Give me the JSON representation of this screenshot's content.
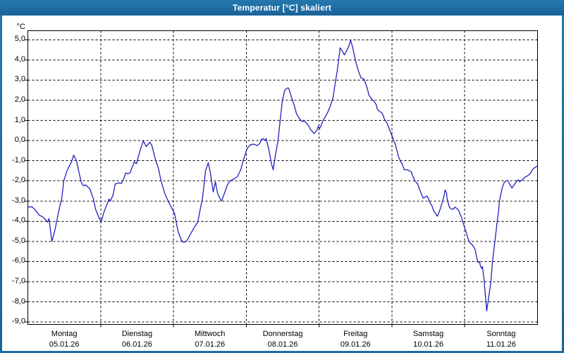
{
  "window": {
    "title": "Temperatur [°C] skaliert"
  },
  "colors": {
    "titlebar": "#1d6da5",
    "window_border": "#1d6da5",
    "title_text": "#ffffff",
    "plot_background": "#ffffff",
    "plot_frame": "#000000",
    "grid": "#000000",
    "line": "#2121bd",
    "axis_text": "#000000"
  },
  "chart_data": {
    "type": "line",
    "title": "Temperatur [°C] skaliert",
    "ylabel": "°C",
    "xlabel": "",
    "grid": true,
    "legend": "none",
    "ylim": [
      -9.12,
      5.45
    ],
    "xlim_days": [
      0,
      7
    ],
    "y_ticks": [
      {
        "value": 5,
        "label": "5,0"
      },
      {
        "value": 4,
        "label": "4,0"
      },
      {
        "value": 3,
        "label": "3,0"
      },
      {
        "value": 2,
        "label": "2,0"
      },
      {
        "value": 1,
        "label": "1,0"
      },
      {
        "value": 0,
        "label": "0,0"
      },
      {
        "value": -1,
        "label": "-1,0"
      },
      {
        "value": -2,
        "label": "-2,0"
      },
      {
        "value": -3,
        "label": "-3,0"
      },
      {
        "value": -4,
        "label": "-4,0"
      },
      {
        "value": -5,
        "label": "-5,0"
      },
      {
        "value": -6,
        "label": "-6,0"
      },
      {
        "value": -7,
        "label": "-7,0"
      },
      {
        "value": -8,
        "label": "-8,0"
      },
      {
        "value": -9,
        "label": "-9,0"
      }
    ],
    "x_days": [
      {
        "name": "Montag",
        "date": "05.01.26"
      },
      {
        "name": "Dienstag",
        "date": "06.01.26"
      },
      {
        "name": "Mittwoch",
        "date": "07.01.26"
      },
      {
        "name": "Donnerstag",
        "date": "08.01.26"
      },
      {
        "name": "Freitag",
        "date": "09.01.26"
      },
      {
        "name": "Samstag",
        "date": "10.01.26"
      },
      {
        "name": "Sonntag",
        "date": "11.01.26"
      }
    ],
    "series": [
      {
        "name": "Temperatur",
        "unit": "°C",
        "points_day_temp": [
          [
            0.0,
            -3.3
          ],
          [
            0.058,
            -3.28
          ],
          [
            0.097,
            -3.42
          ],
          [
            0.155,
            -3.7
          ],
          [
            0.203,
            -3.78
          ],
          [
            0.232,
            -3.88
          ],
          [
            0.271,
            -4.05
          ],
          [
            0.29,
            -3.87
          ],
          [
            0.329,
            -5.0
          ],
          [
            0.368,
            -4.5
          ],
          [
            0.397,
            -4.0
          ],
          [
            0.436,
            -3.3
          ],
          [
            0.465,
            -2.9
          ],
          [
            0.494,
            -2.0
          ],
          [
            0.532,
            -1.55
          ],
          [
            0.571,
            -1.25
          ],
          [
            0.6,
            -1.05
          ],
          [
            0.629,
            -0.72
          ],
          [
            0.668,
            -1.0
          ],
          [
            0.707,
            -1.65
          ],
          [
            0.736,
            -2.1
          ],
          [
            0.765,
            -2.25
          ],
          [
            0.794,
            -2.2
          ],
          [
            0.823,
            -2.3
          ],
          [
            0.852,
            -2.4
          ],
          [
            0.9,
            -2.9
          ],
          [
            0.929,
            -3.4
          ],
          [
            0.968,
            -3.75
          ],
          [
            1.007,
            -4.05
          ],
          [
            1.045,
            -3.55
          ],
          [
            1.094,
            -3.1
          ],
          [
            1.113,
            -2.9
          ],
          [
            1.133,
            -3.0
          ],
          [
            1.171,
            -2.7
          ],
          [
            1.2,
            -2.15
          ],
          [
            1.249,
            -2.1
          ],
          [
            1.287,
            -2.12
          ],
          [
            1.316,
            -1.9
          ],
          [
            1.345,
            -1.6
          ],
          [
            1.374,
            -1.65
          ],
          [
            1.403,
            -1.6
          ],
          [
            1.462,
            -1.05
          ],
          [
            1.491,
            -1.15
          ],
          [
            1.529,
            -0.65
          ],
          [
            1.558,
            -0.3
          ],
          [
            1.588,
            -0.02
          ],
          [
            1.626,
            -0.3
          ],
          [
            1.675,
            -0.08
          ],
          [
            1.704,
            -0.25
          ],
          [
            1.752,
            -0.95
          ],
          [
            1.791,
            -1.35
          ],
          [
            1.83,
            -2.0
          ],
          [
            1.878,
            -2.6
          ],
          [
            1.926,
            -3.0
          ],
          [
            1.955,
            -3.2
          ],
          [
            2.013,
            -3.6
          ],
          [
            2.062,
            -4.5
          ],
          [
            2.11,
            -4.95
          ],
          [
            2.139,
            -5.05
          ],
          [
            2.178,
            -5.0
          ],
          [
            2.217,
            -4.75
          ],
          [
            2.255,
            -4.5
          ],
          [
            2.304,
            -4.2
          ],
          [
            2.333,
            -4.05
          ],
          [
            2.362,
            -3.5
          ],
          [
            2.401,
            -2.8
          ],
          [
            2.44,
            -1.5
          ],
          [
            2.478,
            -1.1
          ],
          [
            2.507,
            -1.6
          ],
          [
            2.546,
            -2.55
          ],
          [
            2.575,
            -2.05
          ],
          [
            2.604,
            -2.6
          ],
          [
            2.633,
            -2.85
          ],
          [
            2.662,
            -3.0
          ],
          [
            2.701,
            -2.6
          ],
          [
            2.74,
            -2.2
          ],
          [
            2.778,
            -2.0
          ],
          [
            2.827,
            -1.9
          ],
          [
            2.875,
            -1.8
          ],
          [
            2.923,
            -1.45
          ],
          [
            2.962,
            -0.95
          ],
          [
            3.001,
            -0.5
          ],
          [
            3.021,
            -0.35
          ],
          [
            3.059,
            -0.2
          ],
          [
            3.108,
            -0.18
          ],
          [
            3.146,
            -0.25
          ],
          [
            3.185,
            -0.15
          ],
          [
            3.204,
            0.05
          ],
          [
            3.233,
            0.1
          ],
          [
            3.253,
            0.0
          ],
          [
            3.272,
            0.1
          ],
          [
            3.301,
            -0.3
          ],
          [
            3.32,
            -0.65
          ],
          [
            3.349,
            -1.2
          ],
          [
            3.369,
            -1.45
          ],
          [
            3.398,
            -0.75
          ],
          [
            3.436,
            0.0
          ],
          [
            3.465,
            1.0
          ],
          [
            3.494,
            1.95
          ],
          [
            3.524,
            2.45
          ],
          [
            3.553,
            2.6
          ],
          [
            3.582,
            2.6
          ],
          [
            3.62,
            2.15
          ],
          [
            3.659,
            1.75
          ],
          [
            3.688,
            1.35
          ],
          [
            3.727,
            1.1
          ],
          [
            3.766,
            0.95
          ],
          [
            3.804,
            0.95
          ],
          [
            3.843,
            0.8
          ],
          [
            3.882,
            0.55
          ],
          [
            3.93,
            0.35
          ],
          [
            3.969,
            0.5
          ],
          [
            3.988,
            0.7
          ],
          [
            4.008,
            0.6
          ],
          [
            4.027,
            0.75
          ],
          [
            4.056,
            1.0
          ],
          [
            4.095,
            1.25
          ],
          [
            4.124,
            1.45
          ],
          [
            4.153,
            1.7
          ],
          [
            4.192,
            2.15
          ],
          [
            4.221,
            2.85
          ],
          [
            4.25,
            3.5
          ],
          [
            4.269,
            4.0
          ],
          [
            4.288,
            4.6
          ],
          [
            4.317,
            4.45
          ],
          [
            4.346,
            4.25
          ],
          [
            4.385,
            4.5
          ],
          [
            4.404,
            4.65
          ],
          [
            4.433,
            4.97
          ],
          [
            4.462,
            4.6
          ],
          [
            4.491,
            4.1
          ],
          [
            4.511,
            3.8
          ],
          [
            4.54,
            3.45
          ],
          [
            4.578,
            3.1
          ],
          [
            4.617,
            3.05
          ],
          [
            4.656,
            2.65
          ],
          [
            4.685,
            2.25
          ],
          [
            4.724,
            2.05
          ],
          [
            4.753,
            1.95
          ],
          [
            4.782,
            1.8
          ],
          [
            4.801,
            1.55
          ],
          [
            4.83,
            1.45
          ],
          [
            4.869,
            1.35
          ],
          [
            4.898,
            1.05
          ],
          [
            4.927,
            0.9
          ],
          [
            4.946,
            0.75
          ],
          [
            4.966,
            0.55
          ],
          [
            4.995,
            0.3
          ],
          [
            5.024,
            0.0
          ],
          [
            5.043,
            -0.15
          ],
          [
            5.062,
            -0.4
          ],
          [
            5.091,
            -0.8
          ],
          [
            5.12,
            -1.05
          ],
          [
            5.14,
            -1.15
          ],
          [
            5.169,
            -1.45
          ],
          [
            5.208,
            -1.45
          ],
          [
            5.237,
            -1.5
          ],
          [
            5.266,
            -1.55
          ],
          [
            5.285,
            -1.75
          ],
          [
            5.314,
            -2.0
          ],
          [
            5.353,
            -2.15
          ],
          [
            5.382,
            -2.45
          ],
          [
            5.411,
            -2.7
          ],
          [
            5.43,
            -2.85
          ],
          [
            5.459,
            -2.8
          ],
          [
            5.479,
            -2.75
          ],
          [
            5.498,
            -2.85
          ],
          [
            5.517,
            -3.05
          ],
          [
            5.546,
            -3.2
          ],
          [
            5.575,
            -3.5
          ],
          [
            5.605,
            -3.65
          ],
          [
            5.624,
            -3.75
          ],
          [
            5.653,
            -3.5
          ],
          [
            5.672,
            -3.3
          ],
          [
            5.692,
            -3.05
          ],
          [
            5.711,
            -2.8
          ],
          [
            5.73,
            -2.45
          ],
          [
            5.75,
            -2.6
          ],
          [
            5.759,
            -2.9
          ],
          [
            5.788,
            -3.3
          ],
          [
            5.817,
            -3.4
          ],
          [
            5.846,
            -3.4
          ],
          [
            5.866,
            -3.3
          ],
          [
            5.885,
            -3.35
          ],
          [
            5.914,
            -3.45
          ],
          [
            5.943,
            -3.7
          ],
          [
            5.963,
            -3.9
          ],
          [
            5.992,
            -4.25
          ],
          [
            6.011,
            -4.45
          ],
          [
            6.04,
            -4.8
          ],
          [
            6.059,
            -5.0
          ],
          [
            6.079,
            -5.1
          ],
          [
            6.098,
            -5.15
          ],
          [
            6.127,
            -5.3
          ],
          [
            6.146,
            -5.45
          ],
          [
            6.166,
            -5.85
          ],
          [
            6.185,
            -6.05
          ],
          [
            6.204,
            -6.0
          ],
          [
            6.214,
            -6.2
          ],
          [
            6.233,
            -6.35
          ],
          [
            6.243,
            -6.25
          ],
          [
            6.262,
            -6.8
          ],
          [
            6.282,
            -7.6
          ],
          [
            6.301,
            -8.45
          ],
          [
            6.32,
            -8.0
          ],
          [
            6.34,
            -7.5
          ],
          [
            6.359,
            -7.0
          ],
          [
            6.378,
            -6.1
          ],
          [
            6.398,
            -5.5
          ],
          [
            6.417,
            -4.9
          ],
          [
            6.446,
            -4.0
          ],
          [
            6.465,
            -3.5
          ],
          [
            6.475,
            -3.05
          ],
          [
            6.494,
            -2.7
          ],
          [
            6.514,
            -2.35
          ],
          [
            6.543,
            -2.07
          ],
          [
            6.572,
            -2.0
          ],
          [
            6.591,
            -1.97
          ],
          [
            6.62,
            -2.2
          ],
          [
            6.649,
            -2.35
          ],
          [
            6.678,
            -2.2
          ],
          [
            6.698,
            -2.1
          ],
          [
            6.717,
            -2.0
          ],
          [
            6.736,
            -1.95
          ],
          [
            6.756,
            -2.05
          ],
          [
            6.775,
            -1.98
          ],
          [
            6.795,
            -1.93
          ],
          [
            6.833,
            -1.8
          ],
          [
            6.862,
            -1.75
          ],
          [
            6.901,
            -1.63
          ],
          [
            6.93,
            -1.45
          ],
          [
            6.95,
            -1.37
          ],
          [
            6.979,
            -1.3
          ],
          [
            6.998,
            -1.27
          ]
        ]
      }
    ]
  }
}
